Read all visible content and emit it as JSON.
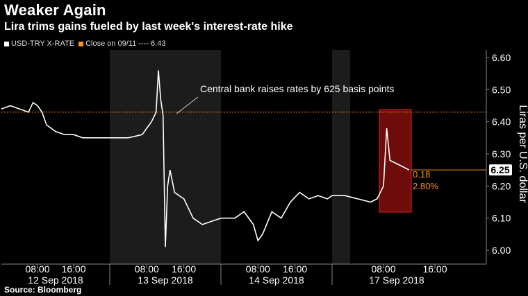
{
  "chart_data": {
    "type": "line",
    "title": "Weaker Again",
    "subtitle": "Lira trims gains fueled by last week's interest-rate hike",
    "source": "Source: Bloomberg",
    "ylabel": "Liras per U.S. dollar",
    "ylim": [
      6.0,
      6.6
    ],
    "y_ticks": [
      "6.60",
      "6.50",
      "6.40",
      "6.30",
      "6.20",
      "6.10",
      "6.00"
    ],
    "x_time_labels": [
      "08:00",
      "16:00",
      "08:00",
      "16:00",
      "08:00",
      "16:00",
      "08:00",
      "16:00"
    ],
    "x_day_labels": [
      "12 Sep 2018",
      "13 Sep 2018",
      "14 Sep 2018",
      "17 Sep 2018"
    ],
    "series": [
      {
        "name": "USD-TRY X-RATE",
        "color": "#ffffff",
        "points": [
          [
            "12 Sep 2018 00:00",
            6.44
          ],
          [
            "12 Sep 2018 02:00",
            6.45
          ],
          [
            "12 Sep 2018 04:00",
            6.44
          ],
          [
            "12 Sep 2018 06:00",
            6.43
          ],
          [
            "12 Sep 2018 07:00",
            6.46
          ],
          [
            "12 Sep 2018 08:00",
            6.45
          ],
          [
            "12 Sep 2018 09:00",
            6.43
          ],
          [
            "12 Sep 2018 10:00",
            6.39
          ],
          [
            "12 Sep 2018 12:00",
            6.37
          ],
          [
            "12 Sep 2018 14:00",
            6.36
          ],
          [
            "12 Sep 2018 16:00",
            6.36
          ],
          [
            "12 Sep 2018 18:00",
            6.35
          ],
          [
            "12 Sep 2018 20:00",
            6.35
          ],
          [
            "12 Sep 2018 22:00",
            6.35
          ],
          [
            "13 Sep 2018 00:00",
            6.35
          ],
          [
            "13 Sep 2018 04:00",
            6.35
          ],
          [
            "13 Sep 2018 07:00",
            6.36
          ],
          [
            "13 Sep 2018 08:00",
            6.38
          ],
          [
            "13 Sep 2018 09:00",
            6.4
          ],
          [
            "13 Sep 2018 10:00",
            6.43
          ],
          [
            "13 Sep 2018 10:30",
            6.56
          ],
          [
            "13 Sep 2018 11:00",
            6.47
          ],
          [
            "13 Sep 2018 11:30",
            6.42
          ],
          [
            "13 Sep 2018 12:00",
            6.01
          ],
          [
            "13 Sep 2018 12:30",
            6.2
          ],
          [
            "13 Sep 2018 13:00",
            6.25
          ],
          [
            "13 Sep 2018 14:00",
            6.18
          ],
          [
            "13 Sep 2018 16:00",
            6.16
          ],
          [
            "13 Sep 2018 18:00",
            6.1
          ],
          [
            "13 Sep 2018 20:00",
            6.08
          ],
          [
            "13 Sep 2018 22:00",
            6.09
          ],
          [
            "14 Sep 2018 00:00",
            6.1
          ],
          [
            "14 Sep 2018 03:00",
            6.1
          ],
          [
            "14 Sep 2018 05:00",
            6.12
          ],
          [
            "14 Sep 2018 07:00",
            6.08
          ],
          [
            "14 Sep 2018 08:00",
            6.03
          ],
          [
            "14 Sep 2018 09:00",
            6.05
          ],
          [
            "14 Sep 2018 11:00",
            6.12
          ],
          [
            "14 Sep 2018 13:00",
            6.1
          ],
          [
            "14 Sep 2018 15:00",
            6.15
          ],
          [
            "14 Sep 2018 17:00",
            6.18
          ],
          [
            "14 Sep 2018 19:00",
            6.16
          ],
          [
            "14 Sep 2018 21:00",
            6.17
          ],
          [
            "14 Sep 2018 23:00",
            6.16
          ],
          [
            "17 Sep 2018 00:00",
            6.17
          ],
          [
            "17 Sep 2018 02:00",
            6.17
          ],
          [
            "17 Sep 2018 04:00",
            6.16
          ],
          [
            "17 Sep 2018 06:00",
            6.15
          ],
          [
            "17 Sep 2018 07:00",
            6.16
          ],
          [
            "17 Sep 2018 08:00",
            6.2
          ],
          [
            "17 Sep 2018 08:30",
            6.38
          ],
          [
            "17 Sep 2018 09:00",
            6.28
          ],
          [
            "17 Sep 2018 10:00",
            6.27
          ],
          [
            "17 Sep 2018 11:00",
            6.26
          ],
          [
            "17 Sep 2018 12:00",
            6.25
          ]
        ]
      }
    ],
    "reference_line": {
      "name": "Close on 09/11",
      "value": 6.43,
      "label": "Close on 09/11 ---- 6.43",
      "color": "#f7941d"
    },
    "last_value_label": "6.25",
    "change_labels": [
      "0.18",
      "2.80%"
    ],
    "annotation": "Central bank raises rates by 625 basis points",
    "grid": false,
    "legend_position": "top-left"
  },
  "legend": {
    "series_label": "USD-TRY X-RATE",
    "reference_label": "Close on 09/11 ---- 6.43"
  }
}
